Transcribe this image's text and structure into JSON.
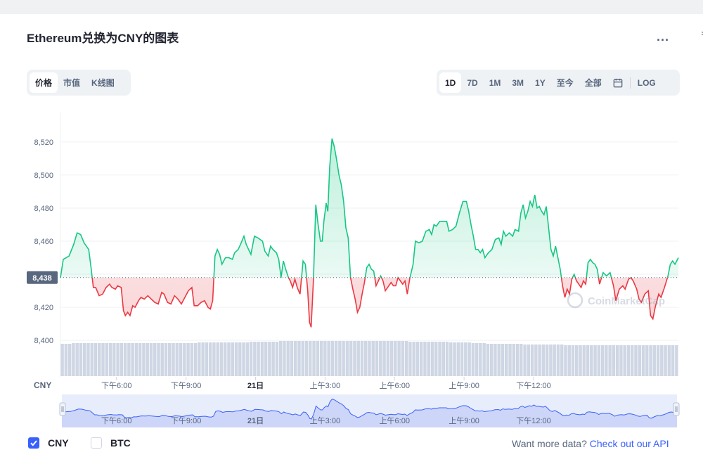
{
  "page": {
    "title": "Ethereum兑换为CNY的图表",
    "more_label": "...",
    "edge_glyph": "ㅋ"
  },
  "toggles": {
    "type_tabs": [
      {
        "label": "价格",
        "active": true
      },
      {
        "label": "市值",
        "active": false
      },
      {
        "label": "K线图",
        "active": false
      }
    ],
    "range_tabs": [
      {
        "label": "1D",
        "active": true
      },
      {
        "label": "7D",
        "active": false
      },
      {
        "label": "1M",
        "active": false
      },
      {
        "label": "3M",
        "active": false
      },
      {
        "label": "1Y",
        "active": false
      },
      {
        "label": "至今",
        "active": false
      },
      {
        "label": "全部",
        "active": false
      }
    ],
    "calendar_icon": "calendar-icon",
    "log_label": "LOG"
  },
  "legend": {
    "cny_label": "CNY",
    "cny_checked": true,
    "btc_label": "BTC",
    "btc_checked": false
  },
  "api": {
    "text": "Want more data?",
    "link": "Check out our API"
  },
  "colors": {
    "up": "#16c784",
    "down": "#ea3943",
    "volume": "#cfd6e4",
    "accent": "#3861fb",
    "grid": "#eff2f5"
  },
  "chart_data": {
    "type": "line",
    "y_unit_label": "CNY",
    "ylim": [
      8392,
      8528
    ],
    "yticks": [
      8400,
      8420,
      8440,
      8460,
      8480,
      8500,
      8520
    ],
    "ytick_labels": [
      "8,400",
      "8,420",
      "8,440",
      "8,460",
      "8,480",
      "8,500",
      "8,520"
    ],
    "reference_value": 8438,
    "reference_label": "8,438",
    "xtick_labels": [
      "下午6:00",
      "下午9:00",
      "21日",
      "上午3:00",
      "上午6:00",
      "上午9:00",
      "下午12:00"
    ],
    "xtick_positions": [
      3.5,
      6.5,
      9.5,
      12.5,
      15.5,
      18.5,
      21.5
    ],
    "x_range_hours": [
      1.08,
      24.8
    ],
    "grid": true,
    "watermark": "CoinMarketCap",
    "price_series": [
      [
        1.08,
        8438
      ],
      [
        1.2,
        8449
      ],
      [
        1.45,
        8451
      ],
      [
        1.65,
        8458
      ],
      [
        1.8,
        8465
      ],
      [
        1.95,
        8464
      ],
      [
        2.1,
        8459
      ],
      [
        2.3,
        8455
      ],
      [
        2.4,
        8444
      ],
      [
        2.5,
        8432
      ],
      [
        2.6,
        8432
      ],
      [
        2.75,
        8427
      ],
      [
        2.9,
        8428
      ],
      [
        3.05,
        8432
      ],
      [
        3.2,
        8434
      ],
      [
        3.3,
        8432
      ],
      [
        3.45,
        8431
      ],
      [
        3.55,
        8433
      ],
      [
        3.7,
        8432
      ],
      [
        3.8,
        8418
      ],
      [
        3.88,
        8415
      ],
      [
        3.98,
        8417
      ],
      [
        4.08,
        8415
      ],
      [
        4.2,
        8421
      ],
      [
        4.3,
        8420
      ],
      [
        4.45,
        8424
      ],
      [
        4.55,
        8426
      ],
      [
        4.7,
        8425
      ],
      [
        4.85,
        8427
      ],
      [
        5.0,
        8425
      ],
      [
        5.15,
        8423
      ],
      [
        5.3,
        8422
      ],
      [
        5.45,
        8429
      ],
      [
        5.55,
        8428
      ],
      [
        5.7,
        8423
      ],
      [
        5.85,
        8422
      ],
      [
        6.0,
        8427
      ],
      [
        6.15,
        8425
      ],
      [
        6.3,
        8422
      ],
      [
        6.45,
        8426
      ],
      [
        6.6,
        8430
      ],
      [
        6.75,
        8432
      ],
      [
        6.85,
        8421
      ],
      [
        7.0,
        8421
      ],
      [
        7.15,
        8423
      ],
      [
        7.3,
        8424
      ],
      [
        7.45,
        8420
      ],
      [
        7.55,
        8419
      ],
      [
        7.65,
        8424
      ],
      [
        7.75,
        8451
      ],
      [
        7.85,
        8455
      ],
      [
        7.95,
        8452
      ],
      [
        8.05,
        8446
      ],
      [
        8.2,
        8450
      ],
      [
        8.35,
        8450
      ],
      [
        8.5,
        8449
      ],
      [
        8.6,
        8453
      ],
      [
        8.75,
        8455
      ],
      [
        8.85,
        8458
      ],
      [
        9.0,
        8463
      ],
      [
        9.1,
        8458
      ],
      [
        9.2,
        8455
      ],
      [
        9.3,
        8452
      ],
      [
        9.45,
        8463
      ],
      [
        9.6,
        8462
      ],
      [
        9.7,
        8461
      ],
      [
        9.8,
        8460
      ],
      [
        9.9,
        8454
      ],
      [
        10.05,
        8451
      ],
      [
        10.15,
        8457
      ],
      [
        10.25,
        8455
      ],
      [
        10.4,
        8453
      ],
      [
        10.5,
        8449
      ],
      [
        10.6,
        8438
      ],
      [
        10.7,
        8448
      ],
      [
        10.8,
        8443
      ],
      [
        10.92,
        8438
      ],
      [
        11.0,
        8436
      ],
      [
        11.1,
        8432
      ],
      [
        11.2,
        8437
      ],
      [
        11.3,
        8432
      ],
      [
        11.42,
        8428
      ],
      [
        11.55,
        8448
      ],
      [
        11.65,
        8446
      ],
      [
        11.75,
        8430
      ],
      [
        11.83,
        8411
      ],
      [
        11.9,
        8408
      ],
      [
        12.0,
        8437
      ],
      [
        12.1,
        8482
      ],
      [
        12.2,
        8470
      ],
      [
        12.3,
        8460
      ],
      [
        12.38,
        8460
      ],
      [
        12.45,
        8472
      ],
      [
        12.55,
        8483
      ],
      [
        12.62,
        8478
      ],
      [
        12.7,
        8505
      ],
      [
        12.8,
        8522
      ],
      [
        12.9,
        8517
      ],
      [
        13.0,
        8509
      ],
      [
        13.1,
        8500
      ],
      [
        13.2,
        8494
      ],
      [
        13.3,
        8484
      ],
      [
        13.4,
        8468
      ],
      [
        13.5,
        8462
      ],
      [
        13.6,
        8438
      ],
      [
        13.7,
        8431
      ],
      [
        13.8,
        8425
      ],
      [
        13.9,
        8417
      ],
      [
        14.0,
        8420
      ],
      [
        14.1,
        8428
      ],
      [
        14.2,
        8435
      ],
      [
        14.3,
        8444
      ],
      [
        14.4,
        8446
      ],
      [
        14.5,
        8443
      ],
      [
        14.6,
        8442
      ],
      [
        14.7,
        8433
      ],
      [
        14.8,
        8436
      ],
      [
        14.9,
        8439
      ],
      [
        15.0,
        8436
      ],
      [
        15.1,
        8430
      ],
      [
        15.2,
        8432
      ],
      [
        15.35,
        8435
      ],
      [
        15.45,
        8433
      ],
      [
        15.55,
        8433
      ],
      [
        15.65,
        8438
      ],
      [
        15.75,
        8436
      ],
      [
        15.85,
        8434
      ],
      [
        15.95,
        8436
      ],
      [
        16.05,
        8428
      ],
      [
        16.15,
        8437
      ],
      [
        16.3,
        8446
      ],
      [
        16.4,
        8460
      ],
      [
        16.55,
        8459
      ],
      [
        16.7,
        8460
      ],
      [
        16.85,
        8466
      ],
      [
        17.0,
        8467
      ],
      [
        17.1,
        8464
      ],
      [
        17.2,
        8470
      ],
      [
        17.3,
        8469
      ],
      [
        17.45,
        8472
      ],
      [
        17.6,
        8472
      ],
      [
        17.75,
        8472
      ],
      [
        17.85,
        8466
      ],
      [
        18.0,
        8467
      ],
      [
        18.15,
        8469
      ],
      [
        18.3,
        8477
      ],
      [
        18.45,
        8484
      ],
      [
        18.6,
        8484
      ],
      [
        18.7,
        8478
      ],
      [
        18.8,
        8470
      ],
      [
        18.9,
        8463
      ],
      [
        19.0,
        8455
      ],
      [
        19.1,
        8455
      ],
      [
        19.2,
        8453
      ],
      [
        19.3,
        8455
      ],
      [
        19.4,
        8450
      ],
      [
        19.55,
        8453
      ],
      [
        19.7,
        8455
      ],
      [
        19.85,
        8461
      ],
      [
        20.0,
        8462
      ],
      [
        20.1,
        8458
      ],
      [
        20.2,
        8466
      ],
      [
        20.3,
        8463
      ],
      [
        20.45,
        8465
      ],
      [
        20.6,
        8463
      ],
      [
        20.7,
        8467
      ],
      [
        20.85,
        8466
      ],
      [
        20.95,
        8477
      ],
      [
        21.05,
        8482
      ],
      [
        21.15,
        8474
      ],
      [
        21.25,
        8478
      ],
      [
        21.35,
        8484
      ],
      [
        21.45,
        8481
      ],
      [
        21.55,
        8488
      ],
      [
        21.65,
        8480
      ],
      [
        21.75,
        8481
      ],
      [
        21.85,
        8478
      ],
      [
        21.95,
        8476
      ],
      [
        22.05,
        8481
      ],
      [
        22.15,
        8468
      ],
      [
        22.25,
        8455
      ],
      [
        22.35,
        8451
      ],
      [
        22.45,
        8457
      ],
      [
        22.55,
        8450
      ],
      [
        22.65,
        8443
      ],
      [
        22.75,
        8433
      ],
      [
        22.85,
        8426
      ],
      [
        22.95,
        8431
      ],
      [
        23.05,
        8428
      ],
      [
        23.15,
        8437
      ],
      [
        23.25,
        8440
      ],
      [
        23.35,
        8436
      ],
      [
        23.45,
        8434
      ],
      [
        23.55,
        8432
      ],
      [
        23.65,
        8436
      ],
      [
        23.75,
        8434
      ],
      [
        23.85,
        8447
      ],
      [
        23.95,
        8449
      ],
      [
        24.05,
        8447
      ],
      [
        24.15,
        8446
      ],
      [
        24.25,
        8443
      ],
      [
        24.35,
        8434
      ],
      [
        24.5,
        8441
      ]
    ],
    "price_series_continuation": [
      [
        24.5,
        8441
      ],
      [
        24.65,
        8439
      ],
      [
        24.8,
        8441
      ],
      [
        24.95,
        8433
      ],
      [
        25.05,
        8424
      ],
      [
        25.2,
        8431
      ],
      [
        25.35,
        8433
      ],
      [
        25.45,
        8431
      ],
      [
        25.6,
        8437
      ],
      [
        25.7,
        8438
      ],
      [
        25.8,
        8436
      ],
      [
        25.95,
        8431
      ],
      [
        26.05,
        8425
      ],
      [
        26.15,
        8423
      ],
      [
        26.3,
        8428
      ],
      [
        26.45,
        8430
      ],
      [
        26.55,
        8415
      ],
      [
        26.65,
        8413
      ],
      [
        26.75,
        8420
      ],
      [
        26.9,
        8428
      ],
      [
        27.0,
        8426
      ],
      [
        27.15,
        8432
      ],
      [
        27.3,
        8439
      ],
      [
        27.4,
        8446
      ],
      [
        27.5,
        8448
      ],
      [
        27.6,
        8446
      ],
      [
        27.75,
        8450
      ]
    ],
    "volume_heights": [
      46,
      46,
      46,
      47,
      47,
      47,
      47,
      47,
      47,
      47,
      47,
      47,
      47,
      47,
      47,
      47,
      47,
      47,
      47,
      47,
      47,
      47,
      47,
      47,
      47,
      47,
      47,
      47,
      47,
      47,
      47,
      47,
      47,
      47,
      47,
      47,
      47,
      48,
      48,
      48,
      48,
      48,
      48,
      48,
      48,
      48,
      48,
      48,
      48,
      48,
      48,
      49,
      49,
      49,
      49,
      49,
      49,
      49,
      49,
      50,
      50,
      50,
      50,
      50,
      50,
      50,
      50,
      50,
      50,
      50,
      50,
      50,
      50,
      50,
      50,
      50,
      50,
      50,
      50,
      50,
      50,
      50,
      50,
      50,
      50,
      50,
      50,
      50,
      50,
      50,
      50,
      50,
      50,
      50,
      49,
      49,
      49,
      49,
      49,
      49,
      49,
      49,
      49,
      49,
      49,
      48,
      48,
      48,
      48,
      48,
      48,
      47,
      47,
      47,
      47,
      46,
      46,
      46,
      46,
      46,
      46,
      46,
      46,
      46,
      46,
      45,
      45,
      45,
      45,
      45,
      45,
      45,
      45,
      45,
      45,
      45,
      44,
      44,
      44,
      44,
      44,
      44,
      44,
      44,
      44,
      44,
      44,
      44,
      44,
      44,
      44,
      44,
      44,
      44,
      44,
      44,
      44,
      44,
      44,
      44,
      44,
      44,
      44,
      44,
      44,
      44,
      44
    ]
  }
}
